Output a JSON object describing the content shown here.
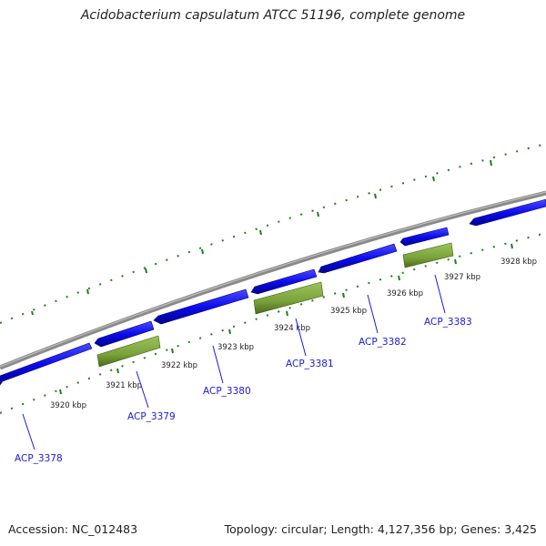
{
  "header": {
    "title": "Acidobacterium capsulatum ATCC 51196, complete genome"
  },
  "footer": {
    "accession": "Accession: NC_012483",
    "topology": "Topology: circular; Length: 4,127,356 bp; Genes: 3,425"
  },
  "colors": {
    "backbone": "#8a8a8a",
    "gene_forward": "#0c0cf0",
    "gene_forward_dark": "#000090",
    "feature_green": "#7aa23a",
    "feature_green_dark": "#4a6a18",
    "tick": "#1e7e1e",
    "label": "#1a1ad6"
  },
  "ticks": [
    {
      "label": "3920 kbp"
    },
    {
      "label": "3921 kbp"
    },
    {
      "label": "3922 kbp"
    },
    {
      "label": "3923 kbp"
    },
    {
      "label": "3924 kbp"
    },
    {
      "label": "3925 kbp"
    },
    {
      "label": "3926 kbp"
    },
    {
      "label": "3927 kbp"
    },
    {
      "label": "3928 kbp"
    }
  ],
  "genes": [
    {
      "id": "ACP_3378"
    },
    {
      "id": "ACP_3379"
    },
    {
      "id": "ACP_3380"
    },
    {
      "id": "ACP_3381"
    },
    {
      "id": "ACP_3382"
    },
    {
      "id": "ACP_3383"
    }
  ]
}
